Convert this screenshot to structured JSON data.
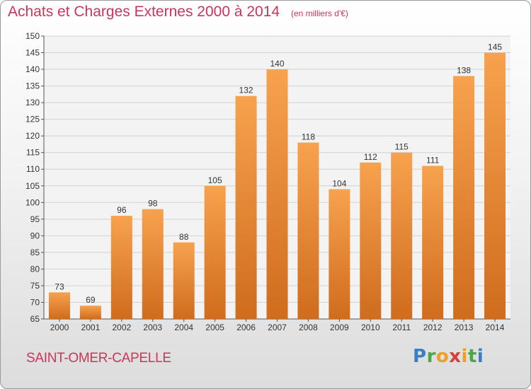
{
  "title": "Achats et Charges Externes 2000 à 2014",
  "unit_note": "(en milliers d'€)",
  "commune": "SAINT-OMER-CAPELLE",
  "brand": "Proxiti",
  "colors": {
    "title": "#c8365a",
    "bar_light": "#f7a24e",
    "bar_dark": "#cf6c1d"
  },
  "chart_data": {
    "type": "bar",
    "categories": [
      "2000",
      "2001",
      "2002",
      "2003",
      "2004",
      "2005",
      "2006",
      "2007",
      "2008",
      "2009",
      "2010",
      "2011",
      "2012",
      "2013",
      "2014"
    ],
    "values": [
      73,
      69,
      96,
      98,
      88,
      105,
      132,
      140,
      118,
      104,
      112,
      115,
      111,
      138,
      145
    ],
    "ylim": [
      65,
      150
    ],
    "yticks": [
      65,
      70,
      75,
      80,
      85,
      90,
      95,
      100,
      105,
      110,
      115,
      120,
      125,
      130,
      135,
      140,
      145,
      150
    ],
    "grid": true
  }
}
